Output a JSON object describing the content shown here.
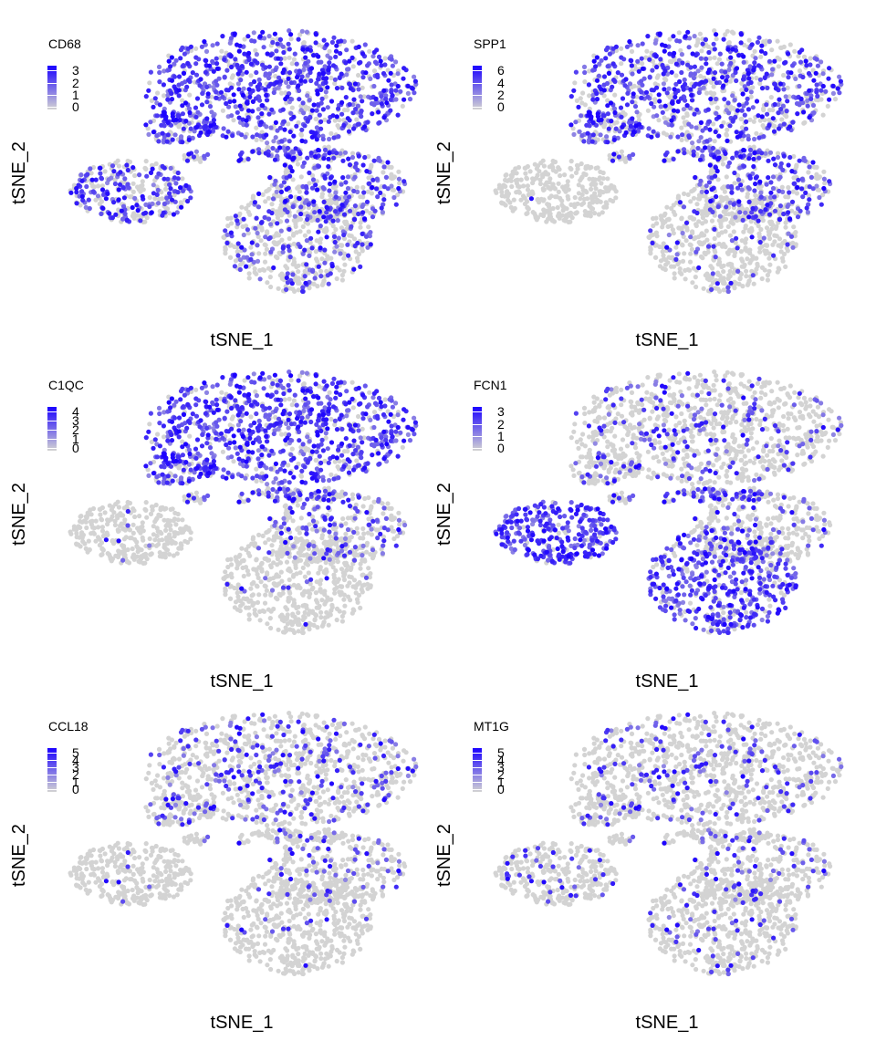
{
  "figure": {
    "xlabel": "tSNE_1",
    "ylabel": "tSNE_2",
    "low_color": "#d3d3d3",
    "high_color": "#1a00ff"
  },
  "chart_data": [
    {
      "type": "scatter",
      "title": "CD68",
      "legend_ticks": [
        "3",
        "2",
        "1",
        "0"
      ],
      "max": 3.5,
      "profile": {
        "top": 0.75,
        "left_island": 0.5,
        "bottom_right": 0.55,
        "bottom_left": 0.3,
        "small_clusters": 0.6,
        "sparse": 0.0
      },
      "xlabel": "tSNE_1",
      "ylabel": "tSNE_2"
    },
    {
      "type": "scatter",
      "title": "SPP1",
      "legend_ticks": [
        "6",
        "4",
        "2",
        "0"
      ],
      "max": 6.5,
      "profile": {
        "top": 0.6,
        "left_island": 0.02,
        "bottom_right": 0.55,
        "bottom_left": 0.12,
        "small_clusters": 0.5,
        "sparse": 0.0
      },
      "xlabel": "tSNE_1",
      "ylabel": "tSNE_2"
    },
    {
      "type": "scatter",
      "title": "C1QC",
      "legend_ticks": [
        "4",
        "3",
        "2",
        "1",
        "0"
      ],
      "max": 4.5,
      "profile": {
        "top": 0.75,
        "left_island": 0.03,
        "bottom_right": 0.35,
        "bottom_left": 0.03,
        "small_clusters": 0.45,
        "sparse": 0.0
      },
      "xlabel": "tSNE_1",
      "ylabel": "tSNE_2"
    },
    {
      "type": "scatter",
      "title": "FCN1",
      "legend_ticks": [
        "3",
        "2",
        "1",
        "0"
      ],
      "max": 3.5,
      "profile": {
        "top": 0.2,
        "left_island": 0.9,
        "bottom_right": 0.15,
        "bottom_left": 0.75,
        "small_clusters": 0.5,
        "sparse": 0.0
      },
      "xlabel": "tSNE_1",
      "ylabel": "tSNE_2"
    },
    {
      "type": "scatter",
      "title": "CCL18",
      "legend_ticks": [
        "5",
        "4",
        "3",
        "2",
        "1",
        "0"
      ],
      "max": 5.5,
      "profile": {
        "top": 0.22,
        "left_island": 0.0,
        "bottom_right": 0.15,
        "bottom_left": 0.0,
        "small_clusters": 0.1,
        "sparse": 0.03
      },
      "xlabel": "tSNE_1",
      "ylabel": "tSNE_2"
    },
    {
      "type": "scatter",
      "title": "MT1G",
      "legend_ticks": [
        "5",
        "4",
        "3",
        "2",
        "1",
        "0"
      ],
      "max": 5.5,
      "profile": {
        "top": 0.1,
        "left_island": 0.02,
        "bottom_right": 0.08,
        "bottom_left": 0.05,
        "small_clusters": 0.05,
        "sparse": 0.06
      },
      "xlabel": "tSNE_1",
      "ylabel": "tSNE_2"
    }
  ]
}
